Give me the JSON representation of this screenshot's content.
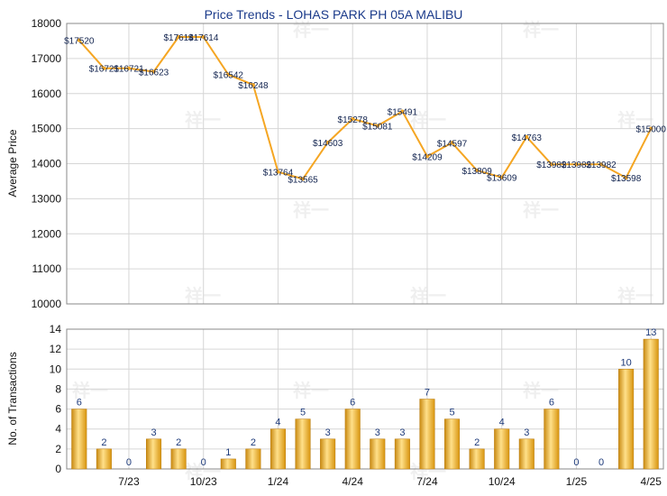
{
  "chart_data": [
    {
      "type": "line",
      "title": "Price Trends - LOHAS PARK PH 05A MALIBU",
      "ylabel": "Average Price",
      "ylim": [
        10000,
        18000
      ],
      "yticks": [
        10000,
        11000,
        12000,
        13000,
        14000,
        15000,
        16000,
        17000,
        18000
      ],
      "x_months": [
        "2023-05",
        "2023-06",
        "2023-07",
        "2023-08",
        "2023-09",
        "2023-10",
        "2023-11",
        "2023-12",
        "2024-01",
        "2024-02",
        "2024-03",
        "2024-04",
        "2024-05",
        "2024-06",
        "2024-07",
        "2024-08",
        "2024-09",
        "2024-10",
        "2024-11",
        "2024-12",
        "2025-01",
        "2025-02",
        "2025-03",
        "2025-04"
      ],
      "values": [
        17520,
        16721,
        16721,
        16623,
        17614,
        17614,
        16542,
        16248,
        13764,
        13565,
        14603,
        15278,
        15081,
        15491,
        14209,
        14597,
        13809,
        13609,
        14763,
        13982,
        13982,
        13982,
        13598,
        15000
      ],
      "labels": [
        "$17520",
        "$16721",
        "$16721",
        "$16623",
        "$17614",
        "$17614",
        "$16542",
        "$16248",
        "$13764",
        "$13565",
        "$14603",
        "$15278",
        "$15081",
        "$15491",
        "$14209",
        "$14597",
        "$13809",
        "$13609",
        "$14763",
        "$13982",
        "$13982",
        "$13982",
        "$13598",
        "$15000"
      ],
      "color": "#f5a623",
      "grid": true
    },
    {
      "type": "bar",
      "ylabel": "No. of Transactions",
      "ylim": [
        0,
        14
      ],
      "yticks": [
        0,
        2,
        4,
        6,
        8,
        10,
        12,
        14
      ],
      "x_months": [
        "2023-05",
        "2023-06",
        "2023-07",
        "2023-08",
        "2023-09",
        "2023-10",
        "2023-11",
        "2023-12",
        "2024-01",
        "2024-02",
        "2024-03",
        "2024-04",
        "2024-05",
        "2024-06",
        "2024-07",
        "2024-08",
        "2024-09",
        "2024-10",
        "2024-11",
        "2024-12",
        "2025-01",
        "2025-02",
        "2025-03",
        "2025-04"
      ],
      "values": [
        6,
        2,
        0,
        3,
        2,
        0,
        1,
        2,
        4,
        5,
        3,
        6,
        3,
        3,
        7,
        5,
        2,
        4,
        3,
        6,
        0,
        0,
        10,
        13
      ],
      "x_tick_labels": [
        "7/23",
        "10/23",
        "1/24",
        "4/24",
        "7/24",
        "10/24",
        "1/25",
        "4/25"
      ],
      "color": "#f0b02a",
      "grid": true
    }
  ],
  "watermark": "祥一"
}
